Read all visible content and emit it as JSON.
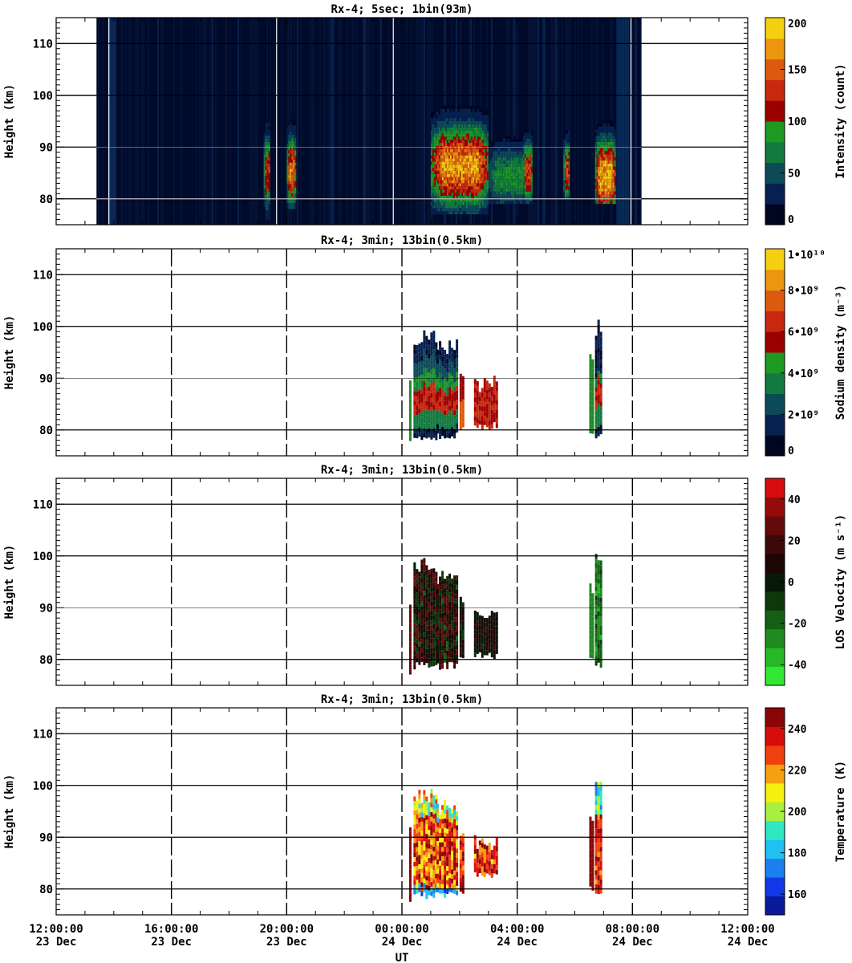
{
  "chart_data": {
    "type": "heatmap",
    "x_axis": {
      "label": "UT",
      "range": [
        "12:00:00 23 Dec",
        "12:00:00 24 Dec"
      ],
      "range_hours": [
        0,
        24
      ],
      "ticks": [
        {
          "hour": 0,
          "time": "12:00:00",
          "date": "23 Dec"
        },
        {
          "hour": 4,
          "time": "16:00:00",
          "date": "23 Dec"
        },
        {
          "hour": 8,
          "time": "20:00:00",
          "date": "23 Dec"
        },
        {
          "hour": 12,
          "time": "00:00:00",
          "date": "24 Dec"
        },
        {
          "hour": 16,
          "time": "04:00:00",
          "date": "24 Dec"
        },
        {
          "hour": 20,
          "time": "08:00:00",
          "date": "24 Dec"
        },
        {
          "hour": 24,
          "time": "12:00:00",
          "date": "24 Dec"
        }
      ]
    },
    "panels": [
      {
        "title": "Rx-4;  5sec; 1bin(93m)",
        "ylabel": "Height (km)",
        "ylim": [
          75,
          115
        ],
        "yticks": [
          80,
          90,
          100,
          110
        ],
        "colorbar": {
          "label": "Intensity (count)",
          "range": [
            0,
            200
          ],
          "ticks": [
            {
              "value": 0,
              "label": "0"
            },
            {
              "value": 50,
              "label": "50"
            },
            {
              "value": 100,
              "label": "100"
            },
            {
              "value": 150,
              "label": "150"
            },
            {
              "value": 200,
              "label": "200"
            }
          ],
          "colors": [
            "#000520",
            "#062150",
            "#0d4a58",
            "#127a3f",
            "#1c9a22",
            "#9b0000",
            "#c8280f",
            "#dc5a0e",
            "#eb960e",
            "#f5d010"
          ]
        },
        "data_coverage_hours": [
          1.4,
          20.3
        ],
        "features": [
          {
            "start_hour": 7.2,
            "end_hour": 7.4,
            "bottom_km": 76,
            "top_km": 95,
            "peak_km": 85,
            "value": 150
          },
          {
            "start_hour": 8.0,
            "end_hour": 8.3,
            "bottom_km": 78,
            "top_km": 97,
            "peak_km": 85,
            "value": 170
          },
          {
            "start_hour": 13.0,
            "end_hour": 15.0,
            "bottom_km": 77,
            "top_km": 99,
            "peak_km": 86,
            "value": 190
          },
          {
            "start_hour": 15.0,
            "end_hour": 16.5,
            "bottom_km": 79,
            "top_km": 96,
            "peak_km": 84,
            "value": 90
          },
          {
            "start_hour": 16.2,
            "end_hour": 16.5,
            "bottom_km": 79,
            "top_km": 96,
            "peak_km": 85,
            "value": 150
          },
          {
            "start_hour": 17.6,
            "end_hour": 17.8,
            "bottom_km": 80,
            "top_km": 96,
            "peak_km": 85,
            "value": 150
          },
          {
            "start_hour": 18.7,
            "end_hour": 19.4,
            "bottom_km": 79,
            "top_km": 99,
            "peak_km": 84,
            "value": 200
          }
        ]
      },
      {
        "title": "Rx-4; 3min; 13bin(0.5km)",
        "ylabel": "Height (km)",
        "ylim": [
          75,
          115
        ],
        "yticks": [
          80,
          90,
          100,
          110
        ],
        "colorbar": {
          "label": "Sodium density (m⁻³)",
          "range": [
            0,
            10
          ],
          "ticks": [
            {
              "value": 0,
              "label": "0"
            },
            {
              "value": 2,
              "label": "2•10⁹"
            },
            {
              "value": 4,
              "label": "4•10⁹"
            },
            {
              "value": 6,
              "label": "6•10⁹"
            },
            {
              "value": 8,
              "label": "8•10⁹"
            },
            {
              "value": 10,
              "label": "1•10¹⁰"
            }
          ],
          "colors": [
            "#000520",
            "#062150",
            "#0d4a58",
            "#127a3f",
            "#1c9a22",
            "#9b0000",
            "#c8280f",
            "#dc5a0e",
            "#eb960e",
            "#f5d010"
          ]
        },
        "profiles": [
          {
            "start_hour": 12.25,
            "end_hour": 12.32,
            "bottom_km": 77,
            "top_km": 92,
            "scheme": "green"
          },
          {
            "start_hour": 12.4,
            "end_hour": 13.2,
            "bottom_km": 78,
            "top_km": 99,
            "scheme": "density"
          },
          {
            "start_hour": 13.2,
            "end_hour": 13.9,
            "bottom_km": 78,
            "top_km": 97,
            "scheme": "density"
          },
          {
            "start_hour": 14.0,
            "end_hour": 14.15,
            "bottom_km": 79,
            "top_km": 92,
            "scheme": "red-orange"
          },
          {
            "start_hour": 14.5,
            "end_hour": 15.3,
            "bottom_km": 80,
            "top_km": 90,
            "scheme": "red"
          },
          {
            "start_hour": 18.5,
            "end_hour": 18.65,
            "bottom_km": 79,
            "top_km": 95,
            "scheme": "green"
          },
          {
            "start_hour": 18.7,
            "end_hour": 18.9,
            "bottom_km": 78,
            "top_km": 101,
            "scheme": "density-top"
          }
        ]
      },
      {
        "title": "Rx-4; 3min; 13bin(0.5km)",
        "ylabel": "Height (km)",
        "ylim": [
          75,
          115
        ],
        "yticks": [
          80,
          90,
          100,
          110
        ],
        "colorbar": {
          "label": "LOS Velocity (m s⁻¹)",
          "range": [
            -50,
            50
          ],
          "ticks": [
            {
              "value": -40,
              "label": "-40"
            },
            {
              "value": -20,
              "label": "-20"
            },
            {
              "value": 0,
              "label": "0"
            },
            {
              "value": 20,
              "label": "20"
            },
            {
              "value": 40,
              "label": "40"
            }
          ],
          "colors": [
            "#33e833",
            "#26b826",
            "#1f8a1f",
            "#155e15",
            "#0c380c",
            "#061806",
            "#1e0505",
            "#3e0808",
            "#650a0a",
            "#950b0b",
            "#d80c0c"
          ]
        },
        "profiles": [
          {
            "start_hour": 12.25,
            "end_hour": 12.32,
            "bottom_km": 77,
            "top_km": 92,
            "scheme": "dark-red"
          },
          {
            "start_hour": 12.4,
            "end_hour": 13.2,
            "bottom_km": 78,
            "top_km": 99,
            "scheme": "velocity"
          },
          {
            "start_hour": 13.2,
            "end_hour": 13.9,
            "bottom_km": 78,
            "top_km": 97,
            "scheme": "velocity"
          },
          {
            "start_hour": 14.0,
            "end_hour": 14.15,
            "bottom_km": 79,
            "top_km": 92,
            "scheme": "velocity-dark"
          },
          {
            "start_hour": 14.5,
            "end_hour": 15.3,
            "bottom_km": 80,
            "top_km": 90,
            "scheme": "velocity-dark"
          },
          {
            "start_hour": 18.5,
            "end_hour": 18.65,
            "bottom_km": 79,
            "top_km": 95,
            "scheme": "green"
          },
          {
            "start_hour": 18.7,
            "end_hour": 18.9,
            "bottom_km": 78,
            "top_km": 101,
            "scheme": "velocity-green"
          }
        ]
      },
      {
        "title": "Rx-4; 3min; 13bin(0.5km)",
        "ylabel": "Height (km)",
        "ylim": [
          75,
          115
        ],
        "yticks": [
          80,
          90,
          100,
          110
        ],
        "colorbar": {
          "label": "Temperature (K)",
          "range": [
            150,
            250
          ],
          "ticks": [
            {
              "value": 160,
              "label": "160"
            },
            {
              "value": 180,
              "label": "180"
            },
            {
              "value": 200,
              "label": "200"
            },
            {
              "value": 220,
              "label": "220"
            },
            {
              "value": 240,
              "label": "240"
            }
          ],
          "colors": [
            "#0a1a9a",
            "#1238e8",
            "#1c7ff0",
            "#20c0f0",
            "#30e8c0",
            "#a8f040",
            "#f5f010",
            "#f5a010",
            "#f04010",
            "#d80c0c",
            "#8a0505"
          ]
        },
        "profiles": [
          {
            "start_hour": 12.25,
            "end_hour": 12.32,
            "bottom_km": 77,
            "top_km": 92,
            "scheme": "dark-red"
          },
          {
            "start_hour": 12.4,
            "end_hour": 13.2,
            "bottom_km": 78,
            "top_km": 99,
            "scheme": "temperature"
          },
          {
            "start_hour": 13.2,
            "end_hour": 13.9,
            "bottom_km": 78,
            "top_km": 97,
            "scheme": "temperature"
          },
          {
            "start_hour": 14.0,
            "end_hour": 14.15,
            "bottom_km": 79,
            "top_km": 92,
            "scheme": "temperature-warm"
          },
          {
            "start_hour": 14.5,
            "end_hour": 15.3,
            "bottom_km": 82,
            "top_km": 90,
            "scheme": "temperature-warm"
          },
          {
            "start_hour": 18.5,
            "end_hour": 18.65,
            "bottom_km": 79,
            "top_km": 95,
            "scheme": "dark-red"
          },
          {
            "start_hour": 18.7,
            "end_hour": 18.9,
            "bottom_km": 78,
            "top_km": 101,
            "scheme": "temperature-top"
          }
        ]
      }
    ]
  }
}
